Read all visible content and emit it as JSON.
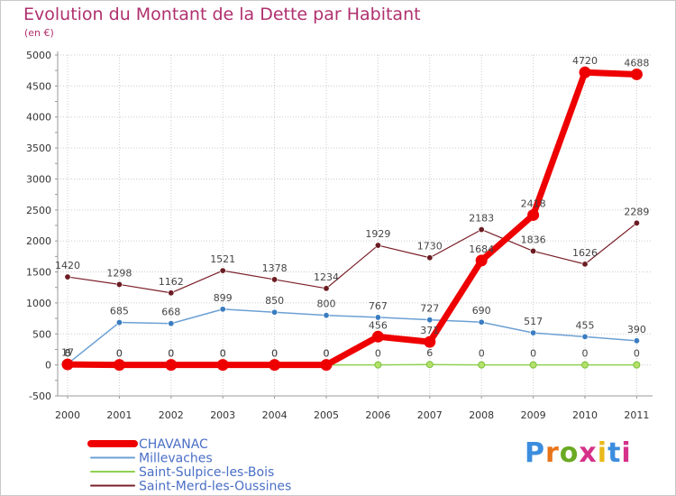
{
  "title": "Evolution du Montant de la Dette par Habitant",
  "subtitle": "(en €)",
  "logo": {
    "text": "Proxiti",
    "letter_colors": [
      "#3c8dde",
      "#e8741a",
      "#6aaa24",
      "#d6318a",
      "#e8b91a",
      "#3c8dde",
      "#d6318a"
    ]
  },
  "colors": {
    "title": "#b0306e",
    "axis_text": "#333333",
    "grid": "#cccccc",
    "legend_text": "#4a6fc6"
  },
  "chart_data": {
    "type": "line",
    "x": [
      "2000",
      "2001",
      "2002",
      "2003",
      "2004",
      "2005",
      "2006",
      "2007",
      "2008",
      "2009",
      "2010",
      "2011"
    ],
    "ylim": [
      -500,
      5000
    ],
    "yticks": [
      "-500",
      "0",
      "500",
      "1000",
      "1500",
      "2000",
      "2500",
      "3000",
      "3500",
      "4000",
      "4500",
      "5000"
    ],
    "grid": true,
    "legend_position": "bottom-left",
    "series": [
      {
        "name": "Saint-Merd-les-Oussines",
        "color": "#7a1f28",
        "point_color": "#6b1c22",
        "width": 1.2,
        "values": [
          1420,
          1298,
          1162,
          1521,
          1378,
          1234,
          1929,
          1730,
          2183,
          1836,
          1626,
          2289
        ],
        "labels": [
          "1420",
          "1298",
          "1162",
          "1521",
          "1378",
          "1234",
          "1929",
          "1730",
          "2183",
          "1836",
          "1626",
          "2289"
        ]
      },
      {
        "name": "Millevaches",
        "color": "#6ca0d4",
        "point_color": "#3a7cc0",
        "width": 1.5,
        "values": [
          17,
          685,
          668,
          899,
          850,
          800,
          767,
          727,
          690,
          517,
          455,
          390
        ],
        "labels": [
          "17",
          "685",
          "668",
          "899",
          "850",
          "800",
          "767",
          "727",
          "690",
          "517",
          "455",
          "390"
        ]
      },
      {
        "name": "Saint-Sulpice-les-Bois",
        "color": "#8fd14f",
        "point_color": "#79c23a",
        "width": 1.5,
        "values": [
          0,
          0,
          0,
          0,
          0,
          0,
          0,
          6,
          0,
          0,
          0,
          0
        ],
        "labels": [
          "0",
          "0",
          "0",
          "0",
          "0",
          "0",
          "0",
          "6",
          "0",
          "0",
          "0",
          "0"
        ]
      },
      {
        "name": "CHAVANAC",
        "color": "#ee0000",
        "point_color": "#ee0000",
        "width": 7,
        "values": [
          8,
          0,
          0,
          0,
          0,
          0,
          456,
          371,
          1684,
          2418,
          4720,
          4688
        ],
        "labels": [
          "8",
          "0",
          "0",
          "0",
          "0",
          "0",
          "456",
          "371",
          "1684",
          "2418",
          "4720",
          "4688"
        ]
      }
    ],
    "legend": [
      {
        "label": "CHAVANAC",
        "color": "#ee0000",
        "width": 8
      },
      {
        "label": "Millevaches",
        "color": "#6ca0d4",
        "width": 2
      },
      {
        "label": "Saint-Sulpice-les-Bois",
        "color": "#8fd14f",
        "width": 2
      },
      {
        "label": "Saint-Merd-les-Oussines",
        "color": "#7a1f28",
        "width": 2
      }
    ]
  }
}
